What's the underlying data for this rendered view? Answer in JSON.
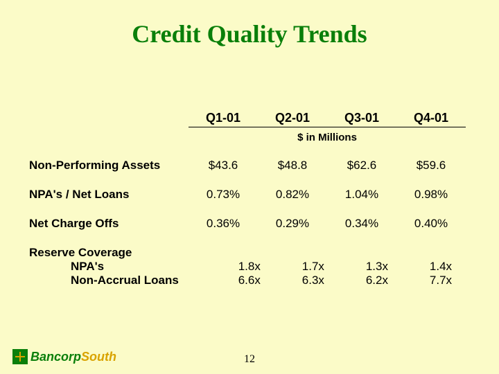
{
  "slide": {
    "title": "Credit Quality Trends",
    "background_color": "#fbfbc8",
    "title_color": "#0a7f0a",
    "page_number": "12"
  },
  "table": {
    "headers": [
      "Q1-01",
      "Q2-01",
      "Q3-01",
      "Q4-01"
    ],
    "sub_header": "$ in Millions",
    "rows": [
      {
        "label": "Non-Performing Assets",
        "values": [
          "$43.6",
          "$48.8",
          "$62.6",
          "$59.6"
        ]
      },
      {
        "label": "NPA's / Net Loans",
        "values": [
          "0.73%",
          "0.82%",
          "1.04%",
          "0.98%"
        ]
      },
      {
        "label": "Net Charge Offs",
        "values": [
          "0.36%",
          "0.29%",
          "0.34%",
          "0.40%"
        ]
      }
    ],
    "group": {
      "label": "Reserve Coverage",
      "sub_rows": [
        {
          "label": "NPA's",
          "values": [
            "1.8x",
            "1.7x",
            "1.3x",
            "1.4x"
          ]
        },
        {
          "label": "Non-Accrual Loans",
          "values": [
            "6.6x",
            "6.3x",
            "6.2x",
            "7.7x"
          ]
        }
      ]
    }
  },
  "brand": {
    "part_a": "Bancorp",
    "part_b": "South"
  }
}
